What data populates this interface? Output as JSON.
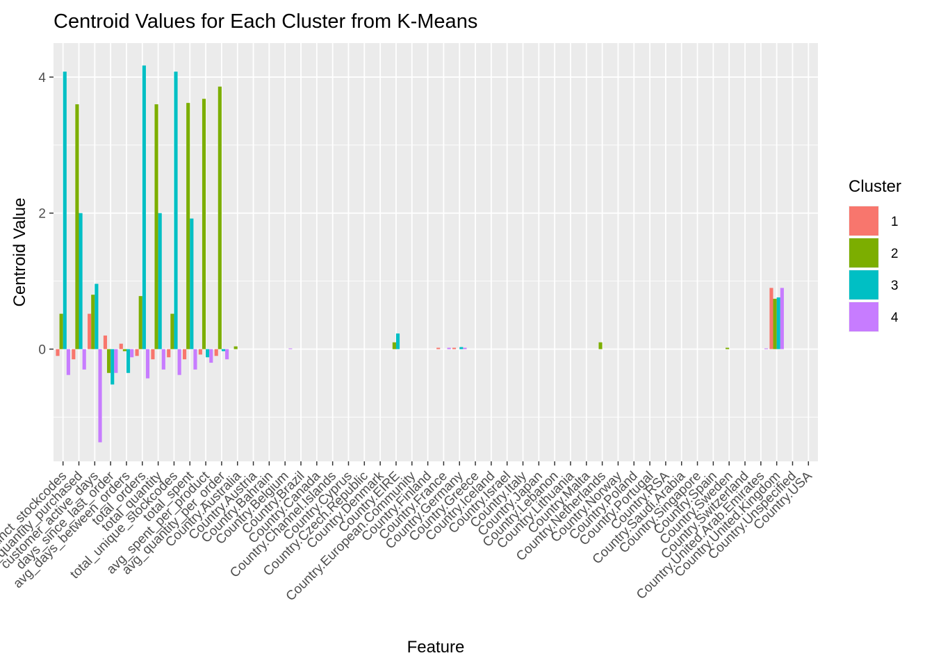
{
  "chart_data": {
    "type": "bar",
    "title": "Centroid Values for Each Cluster from K-Means",
    "xlabel": "Feature",
    "ylabel": "Centroid Value",
    "ylim": [
      -1.65,
      4.5
    ],
    "yticks": [
      0,
      2,
      4
    ],
    "grid": true,
    "legend": {
      "title": "Cluster",
      "position": "right"
    },
    "categories": [
      "distinct_stockcodes",
      "avg_quantity_purchased",
      "customer_active_days",
      "days_since_last_order",
      "avg_days_between_orders",
      "total_orders",
      "total_quantity",
      "total_unique_stockcodes",
      "total_spent",
      "avg_spent_per_product",
      "avg_quantity_per_order",
      "Country.Australia",
      "Country.Austria",
      "Country.Bahrain",
      "Country.Belgium",
      "Country.Brazil",
      "Country.Canada",
      "Country.Channel.Islands",
      "Country.Cyprus",
      "Country.Czech.Republic",
      "Country.Denmark",
      "Country.EIRE",
      "Country.European.Community",
      "Country.Finland",
      "Country.France",
      "Country.Germany",
      "Country.Greece",
      "Country.Iceland",
      "Country.Israel",
      "Country.Italy",
      "Country.Japan",
      "Country.Lebanon",
      "Country.Lithuania",
      "Country.Malta",
      "Country.Netherlands",
      "Country.Norway",
      "Country.Poland",
      "Country.Portugal",
      "Country.RSA",
      "Country.Saudi.Arabia",
      "Country.Singapore",
      "Country.Spain",
      "Country.Sweden",
      "Country.Switzerland",
      "Country.United.Arab.Emirates",
      "Country.United.Kingdom",
      "Country.Unspecified",
      "Country.USA"
    ],
    "series": [
      {
        "name": "1",
        "color": "#F8766D",
        "values": [
          -0.1,
          -0.15,
          0.52,
          0.2,
          0.08,
          -0.1,
          -0.15,
          -0.12,
          -0.15,
          -0.08,
          -0.1,
          0,
          0,
          0,
          0,
          0,
          0,
          0,
          0,
          0,
          0,
          0,
          0,
          0,
          0.02,
          0.02,
          0,
          0,
          0,
          0,
          0,
          0,
          0,
          0,
          0,
          0,
          0,
          0,
          0,
          0,
          0,
          0,
          0,
          0,
          0,
          0.9,
          0,
          0
        ]
      },
      {
        "name": "2",
        "color": "#7CAE00",
        "values": [
          0.52,
          3.6,
          0.8,
          -0.35,
          -0.03,
          0.78,
          3.6,
          0.52,
          3.62,
          3.68,
          3.86,
          0.04,
          0,
          0,
          0,
          0,
          0,
          0,
          0,
          0,
          0,
          0.1,
          0,
          0,
          0,
          0,
          0,
          0,
          0,
          0,
          0,
          0,
          0,
          0,
          0.1,
          0,
          0,
          0,
          0,
          0,
          0,
          0,
          0.02,
          0,
          0,
          0.74,
          0,
          0
        ]
      },
      {
        "name": "3",
        "color": "#00BFC4",
        "values": [
          4.08,
          2.0,
          0.96,
          -0.52,
          -0.35,
          4.17,
          2.0,
          4.08,
          1.92,
          -0.12,
          -0.03,
          0,
          0,
          0,
          0,
          0,
          0,
          0,
          0,
          0,
          0,
          0.23,
          0,
          0,
          0,
          0.03,
          0,
          0,
          0,
          0,
          0,
          0,
          0,
          0,
          0,
          0,
          0,
          0,
          0,
          0,
          0,
          0,
          0,
          0,
          0,
          0.76,
          0,
          0
        ]
      },
      {
        "name": "4",
        "color": "#C77CFF",
        "values": [
          -0.38,
          -0.3,
          -1.37,
          -0.35,
          -0.12,
          -0.43,
          -0.3,
          -0.38,
          -0.3,
          -0.2,
          -0.15,
          0,
          0,
          0,
          0.01,
          0,
          0,
          0,
          0,
          0,
          0,
          0,
          0,
          0,
          0.02,
          0.02,
          0,
          0,
          0,
          0,
          0,
          0,
          0,
          0,
          0,
          0,
          0,
          0,
          0,
          0,
          0,
          0,
          0,
          0,
          0.01,
          0.9,
          0,
          0
        ]
      }
    ]
  }
}
